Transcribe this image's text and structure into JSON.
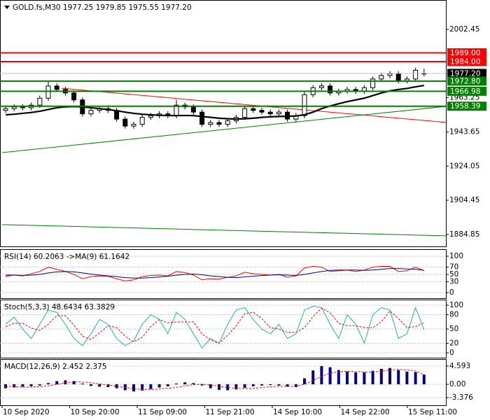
{
  "chart_data": [
    {
      "type": "candlestick",
      "title": "GOLD.fs,M30  1977.25 1979.85 1975.55 1977.20",
      "open": [
        1956,
        1957,
        1958,
        1957.5,
        1959,
        1963,
        1970,
        1968,
        1966,
        1962,
        1954,
        1956,
        1957,
        1956,
        1951,
        1947,
        1948,
        1952,
        1953,
        1954,
        1953,
        1959,
        1958,
        1955,
        1948,
        1949,
        1948,
        1950,
        1952,
        1957,
        1956,
        1955,
        1954,
        1955,
        1951,
        1953,
        1965,
        1969,
        1970,
        1966,
        1967,
        1968,
        1967,
        1969,
        1974,
        1976,
        1977,
        1973,
        1974,
        1977.25
      ],
      "high": [
        1958.5,
        1959.5,
        1959.5,
        1960.5,
        1964.5,
        1973,
        1971.5,
        1969.5,
        1967.5,
        1963.5,
        1957.5,
        1958.5,
        1958.5,
        1957.5,
        1952.5,
        1949.5,
        1953.5,
        1954.5,
        1955.5,
        1955.5,
        1962,
        1960.5,
        1959.5,
        1956.5,
        1950.5,
        1950.5,
        1951.5,
        1953.5,
        1958.5,
        1958.5,
        1957.5,
        1956.5,
        1956.5,
        1956.5,
        1954.5,
        1966.5,
        1970.5,
        1971.5,
        1971.5,
        1968.5,
        1969.5,
        1969.5,
        1970.5,
        1975.5,
        1977.5,
        1978.5,
        1978.5,
        1975.5,
        1980.5,
        1979.85
      ],
      "low": [
        1954.5,
        1955.5,
        1956,
        1956,
        1957.5,
        1961.5,
        1966.5,
        1964.5,
        1960.5,
        1952.5,
        1952.5,
        1954.5,
        1954.5,
        1949.5,
        1945.5,
        1945.5,
        1946.5,
        1950.5,
        1951.5,
        1951.5,
        1951.5,
        1956.5,
        1953.5,
        1946.5,
        1946.5,
        1946.5,
        1946.5,
        1948.5,
        1950.5,
        1954.5,
        1953.5,
        1952.5,
        1952.5,
        1949.5,
        1949.5,
        1951.5,
        1963.5,
        1967.5,
        1964.5,
        1964.5,
        1965.5,
        1965.5,
        1965.5,
        1967.5,
        1972.5,
        1974.5,
        1971.5,
        1971.5,
        1972.5,
        1975.55
      ],
      "close": [
        1957,
        1958,
        1957.5,
        1959,
        1963,
        1970,
        1968,
        1966,
        1962,
        1954,
        1956,
        1957,
        1956,
        1951,
        1947,
        1948,
        1952,
        1953,
        1954,
        1953,
        1959,
        1958,
        1955,
        1948,
        1949,
        1948,
        1950,
        1952,
        1957,
        1956,
        1955,
        1954,
        1955,
        1951,
        1953,
        1965,
        1969,
        1970,
        1966,
        1967,
        1968,
        1967,
        1969,
        1974,
        1976,
        1977,
        1973,
        1974,
        1979,
        1977.2
      ],
      "ma": {
        "color": "#000000",
        "values": [
          1953.5,
          1953.8,
          1954.3,
          1954.8,
          1955.5,
          1956.5,
          1957.5,
          1958,
          1958.2,
          1958,
          1957.5,
          1957,
          1956.5,
          1955.8,
          1955,
          1954.3,
          1953.8,
          1953.5,
          1953.2,
          1953,
          1953,
          1953.1,
          1953,
          1952.5,
          1952,
          1951.5,
          1951.2,
          1951,
          1951.2,
          1951.5,
          1952,
          1952.3,
          1952.5,
          1952.6,
          1952.8,
          1953.5,
          1955,
          1957,
          1958.5,
          1959.8,
          1961,
          1962,
          1963,
          1964.5,
          1966,
          1967.2,
          1968,
          1968.6,
          1969.5,
          1970.3
        ]
      },
      "levels": [
        {
          "value": 1989,
          "label": "1989.00",
          "color": "#ff0000"
        },
        {
          "value": 1984,
          "label": "1984.00",
          "color": "#ff0000"
        },
        {
          "value": 1977.2,
          "label": "1977.20",
          "color": "#000000"
        },
        {
          "value": 1972.8,
          "label": "1972.80",
          "color": "#008000"
        },
        {
          "value": 1966.98,
          "label": "1966.98",
          "color": "#008000"
        },
        {
          "value": 1958.39,
          "label": "1958.39",
          "color": "#008000"
        }
      ],
      "trendlines": [
        {
          "color": "#ff0000",
          "values": [
            1968.7,
            1949.1
          ]
        },
        {
          "color": "#008000",
          "values": [
            1931.8,
            1958.3
          ]
        },
        {
          "color": "#008000",
          "values": [
            1890.5,
            1884.05
          ]
        }
      ],
      "ylim": [
        1878.0,
        2019.3
      ],
      "yticks": [
        1884.85,
        1904.45,
        1924.05,
        1943.65,
        1963.25,
        2002.45
      ],
      "x_labels": [
        "10 Sep 2020",
        "10 Sep 20:00",
        "11 Sep 09:00",
        "11 Sep 21:00",
        "14 Sep 10:00",
        "14 Sep 22:00",
        "15 Sep 11:00"
      ]
    },
    {
      "type": "line",
      "title": "RSI(14) 60.2063 ->MA(9) 61.1642",
      "series": [
        {
          "color": "#ff0000",
          "values": [
            45,
            48,
            46,
            52,
            58,
            70,
            64,
            58,
            50,
            38,
            44,
            46,
            45,
            38,
            32,
            35,
            44,
            47,
            48,
            46,
            58,
            55,
            48,
            35,
            38,
            37,
            42,
            46,
            56,
            52,
            50,
            48,
            50,
            42,
            46,
            68,
            72,
            70,
            58,
            60,
            62,
            58,
            62,
            70,
            72,
            72,
            58,
            60,
            70,
            60.2063
          ]
        },
        {
          "color": "#000080",
          "values": [
            48,
            48,
            47,
            48,
            50,
            54,
            57,
            58,
            57,
            54,
            51,
            48,
            46,
            44,
            41,
            40,
            40,
            41,
            43,
            45,
            48,
            50,
            51,
            49,
            46,
            44,
            42,
            41,
            43,
            45,
            47,
            48,
            49,
            48,
            47,
            50,
            54,
            58,
            61,
            62,
            62,
            62,
            61,
            62,
            64,
            66,
            66,
            65,
            64,
            61.1642
          ]
        }
      ],
      "ylim": [
        -15.4,
        119.2
      ],
      "yticks": [
        0,
        30,
        50,
        70,
        100
      ]
    },
    {
      "type": "line",
      "title": "Stoch(5,3,3) 48.6434 63.3829",
      "series": [
        {
          "color": "#20b2aa",
          "values": [
            60,
            75,
            50,
            30,
            60,
            90,
            85,
            60,
            30,
            15,
            40,
            70,
            60,
            30,
            15,
            25,
            60,
            80,
            70,
            40,
            85,
            70,
            40,
            10,
            30,
            20,
            60,
            90,
            95,
            70,
            50,
            40,
            60,
            30,
            40,
            90,
            98,
            95,
            60,
            30,
            80,
            60,
            20,
            80,
            95,
            90,
            30,
            40,
            95,
            48.6434
          ]
        },
        {
          "color": "#ff0000",
          "style": "dashed",
          "values": [
            55,
            62,
            62,
            52,
            47,
            60,
            78,
            78,
            58,
            35,
            28,
            42,
            57,
            53,
            35,
            23,
            33,
            55,
            70,
            63,
            65,
            65,
            65,
            40,
            27,
            20,
            37,
            57,
            82,
            85,
            72,
            53,
            50,
            43,
            43,
            53,
            76,
            94,
            84,
            62,
            57,
            57,
            53,
            53,
            65,
            88,
            72,
            53,
            55,
            63.3829
          ]
        }
      ],
      "ylim": [
        -10.3,
        111.8
      ],
      "yticks": [
        0,
        20,
        50,
        80,
        100
      ]
    },
    {
      "type": "bar",
      "title": "MACD(12,26,9) 2.452 2.375",
      "color": "#000080",
      "values": [
        -1,
        -0.8,
        -0.6,
        -0.5,
        -0.3,
        0.3,
        0.8,
        1,
        0.8,
        0.2,
        -0.4,
        -0.6,
        -0.7,
        -1,
        -1.5,
        -1.8,
        -1.6,
        -1.2,
        -0.8,
        -0.5,
        0.2,
        0.5,
        0.3,
        -0.3,
        -1,
        -1.4,
        -1.5,
        -1.3,
        -0.9,
        -0.5,
        -0.3,
        -0.2,
        -0.3,
        -0.6,
        -0.7,
        1.5,
        3.5,
        4.6,
        4.3,
        3.6,
        3.2,
        3,
        3,
        3.4,
        3.9,
        4.1,
        3.6,
        3.2,
        3.1,
        2.452
      ],
      "signal": {
        "color": "#ff0000",
        "style": "dashed",
        "values": [
          -0.5,
          -0.6,
          -0.7,
          -0.7,
          -0.6,
          -0.4,
          0,
          0.4,
          0.6,
          0.6,
          0.4,
          0.1,
          -0.2,
          -0.5,
          -0.8,
          -1.1,
          -1.3,
          -1.3,
          -1.2,
          -1,
          -0.8,
          -0.4,
          -0.1,
          0,
          -0.2,
          -0.5,
          -0.8,
          -1,
          -1.1,
          -1,
          -0.8,
          -0.6,
          -0.5,
          -0.5,
          -0.5,
          0,
          1,
          2,
          2.8,
          3.2,
          3.3,
          3.2,
          3.1,
          3.1,
          3.3,
          3.6,
          3.8,
          3.6,
          3.4,
          2.375
        ]
      },
      "ylim": [
        -5.3,
        6.36
      ],
      "yticks": [
        {
          "value": -3.376,
          "label": "-3.376"
        },
        {
          "value": 0,
          "label": "0.00"
        },
        {
          "value": 4.593,
          "label": "4.593"
        }
      ]
    }
  ]
}
